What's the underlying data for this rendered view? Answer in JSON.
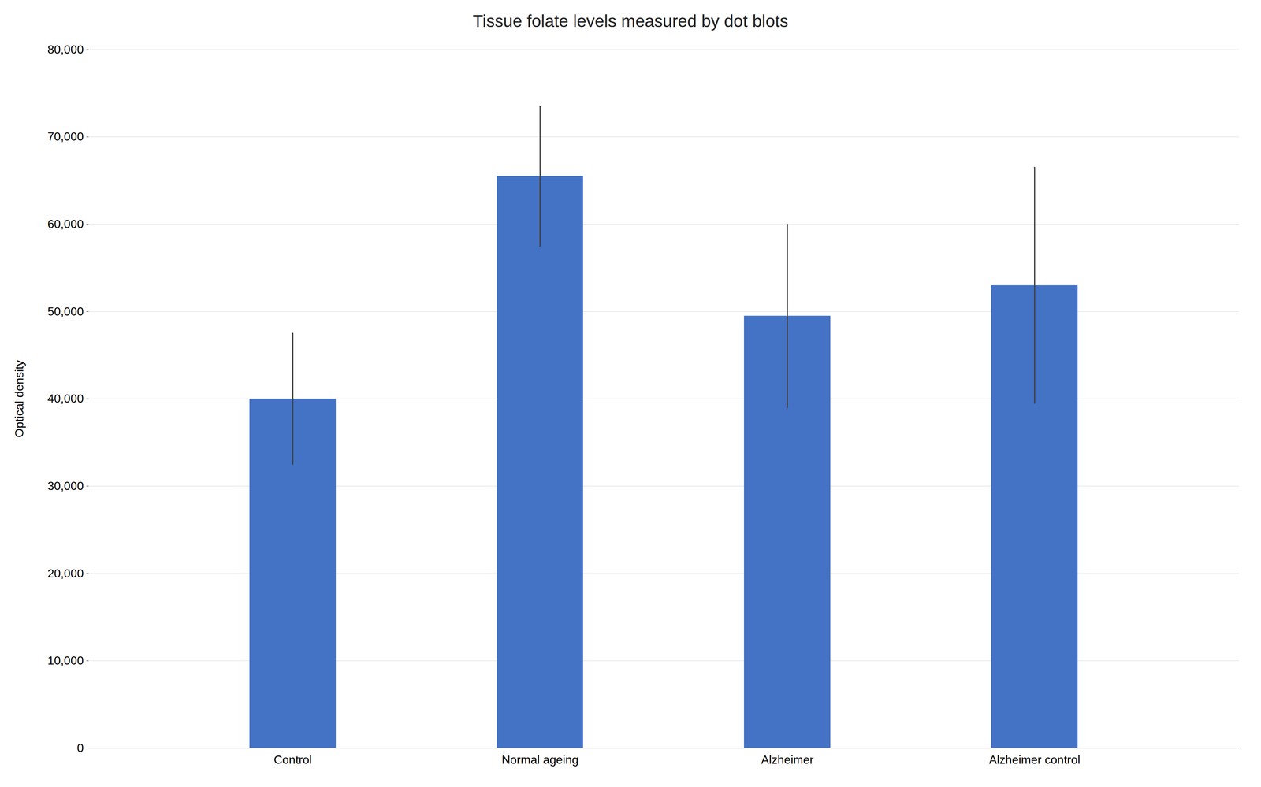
{
  "chart_data": {
    "type": "bar",
    "title": "Tissue folate levels measured by dot blots",
    "categories": [
      "Control",
      "Normal ageing",
      "Alzheimer",
      "Alzheimer control"
    ],
    "values": [
      40000,
      65500,
      49500,
      53000
    ],
    "errors": [
      7500,
      8000,
      10500,
      13500
    ],
    "color": "#4472C4",
    "ylabel": "Optical density",
    "ylim": [
      0,
      80000
    ],
    "yticks": [
      0,
      {
        "value": 10000,
        "label": "10,000"
      },
      {
        "value": 20000,
        "label": "20,000"
      },
      {
        "value": 30000,
        "label": "30,000"
      },
      {
        "value": 40000,
        "label": "40,000"
      },
      {
        "value": 50000,
        "label": "50,000"
      },
      {
        "value": 60000,
        "label": "60,000"
      },
      {
        "value": 70000,
        "label": "70,000"
      },
      {
        "value": 80000,
        "label": "80,000"
      }
    ],
    "grid": true
  }
}
